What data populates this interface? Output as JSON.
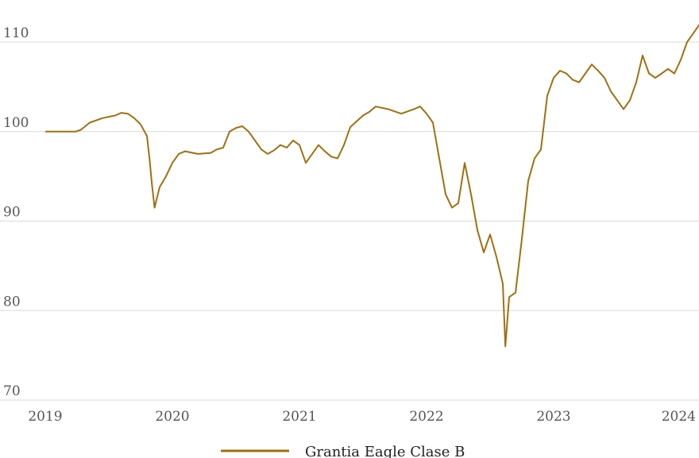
{
  "chart_data": {
    "type": "line",
    "title": "",
    "xlabel": "",
    "ylabel": "",
    "ylim": [
      70,
      113
    ],
    "xlim": [
      2019.0,
      2024.2
    ],
    "grid": "horizontal",
    "legend_position": "bottom-center",
    "y_ticks": [
      70,
      80,
      90,
      100,
      110
    ],
    "x_ticks": [
      2019,
      2020,
      2021,
      2022,
      2023,
      2024
    ],
    "x_tick_labels": [
      "2019",
      "2020",
      "2021",
      "2022",
      "2023",
      "2024"
    ],
    "colors": {
      "line": "#a07010"
    },
    "series": [
      {
        "name": "Grantia Eagle Clase B",
        "x": [
          2019.0,
          2019.1,
          2019.2,
          2019.24,
          2019.28,
          2019.35,
          2019.45,
          2019.55,
          2019.6,
          2019.65,
          2019.7,
          2019.75,
          2019.8,
          2019.82,
          2019.84,
          2019.86,
          2019.9,
          2019.95,
          2020.0,
          2020.05,
          2020.1,
          2020.2,
          2020.3,
          2020.35,
          2020.4,
          2020.45,
          2020.5,
          2020.55,
          2020.6,
          2020.65,
          2020.7,
          2020.75,
          2020.8,
          2020.85,
          2020.9,
          2020.95,
          2021.0,
          2021.05,
          2021.1,
          2021.15,
          2021.2,
          2021.25,
          2021.3,
          2021.35,
          2021.4,
          2021.5,
          2021.55,
          2021.6,
          2021.7,
          2021.8,
          2021.9,
          2021.95,
          2022.0,
          2022.05,
          2022.1,
          2022.15,
          2022.2,
          2022.25,
          2022.3,
          2022.35,
          2022.4,
          2022.45,
          2022.5,
          2022.55,
          2022.6,
          2022.62,
          2022.65,
          2022.7,
          2022.75,
          2022.8,
          2022.85,
          2022.9,
          2022.95,
          2023.0,
          2023.05,
          2023.1,
          2023.15,
          2023.2,
          2023.25,
          2023.3,
          2023.35,
          2023.4,
          2023.45,
          2023.5,
          2023.55,
          2023.6,
          2023.65,
          2023.7,
          2023.75,
          2023.8,
          2023.85,
          2023.9,
          2023.95,
          2024.0,
          2024.05,
          2024.1,
          2024.15,
          2024.2
        ],
        "values": [
          100,
          100,
          100,
          100,
          100.2,
          101,
          101.5,
          101.8,
          102.1,
          102,
          101.5,
          100.8,
          99.5,
          97,
          94,
          91.5,
          93.8,
          95,
          96.5,
          97.5,
          97.8,
          97.5,
          97.6,
          98,
          98.2,
          100,
          100.4,
          100.6,
          100,
          99,
          98,
          97.5,
          97.9,
          98.5,
          98.2,
          99,
          98.5,
          96.5,
          97.5,
          98.5,
          97.8,
          97.2,
          97,
          98.5,
          100.5,
          101.8,
          102.2,
          102.8,
          102.5,
          102,
          102.5,
          102.8,
          102,
          101,
          97,
          93,
          91.5,
          92,
          96.5,
          93,
          89,
          86.5,
          88.5,
          86,
          83,
          76,
          81.5,
          82,
          88,
          94.5,
          97,
          98,
          104,
          106,
          106.8,
          106.5,
          105.8,
          105.5,
          106.5,
          107.5,
          106.8,
          106,
          104.5,
          103.5,
          102.5,
          103.5,
          105.5,
          108.5,
          106.5,
          106,
          106.5,
          107,
          106.5,
          108,
          110,
          111,
          112,
          112.3
        ]
      }
    ]
  }
}
